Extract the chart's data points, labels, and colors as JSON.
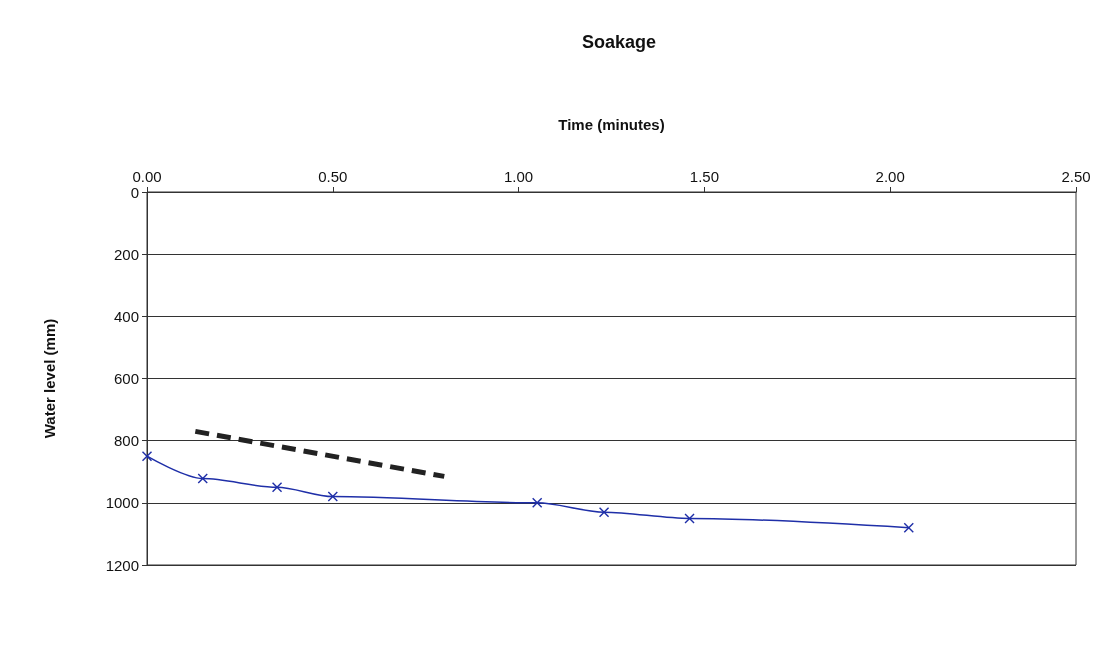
{
  "chart_data": {
    "type": "line",
    "title": "Soakage",
    "xlabel": "Time (minutes)",
    "ylabel": "Water level (mm)",
    "series": [
      {
        "color": "#1f2fa8",
        "x": [
          0.0,
          0.15,
          0.35,
          0.5,
          1.05,
          1.23,
          1.46,
          2.05
        ],
        "values": [
          850,
          922,
          950,
          980,
          1000,
          1030,
          1050,
          1080
        ]
      },
      {
        "color": "#222222",
        "x": [
          0.13,
          0.8
        ],
        "values": [
          770,
          915
        ],
        "line_style": "dashed",
        "marker": "none"
      }
    ],
    "xlim": [
      0,
      2.5
    ],
    "xticks": [
      {
        "value": 0,
        "label": "0.00"
      },
      {
        "value": 0.5,
        "label": "0.50"
      },
      {
        "value": 1,
        "label": "1.00"
      },
      {
        "value": 1.5,
        "label": "1.50"
      },
      {
        "value": 2,
        "label": "2.00"
      },
      {
        "value": 2.5,
        "label": "2.50"
      }
    ],
    "ylim": [
      1200,
      0
    ],
    "yticks": [
      0,
      200,
      400,
      600,
      800,
      1000,
      1200
    ],
    "grid": "y",
    "marker": "cross",
    "line_style": "solid"
  }
}
